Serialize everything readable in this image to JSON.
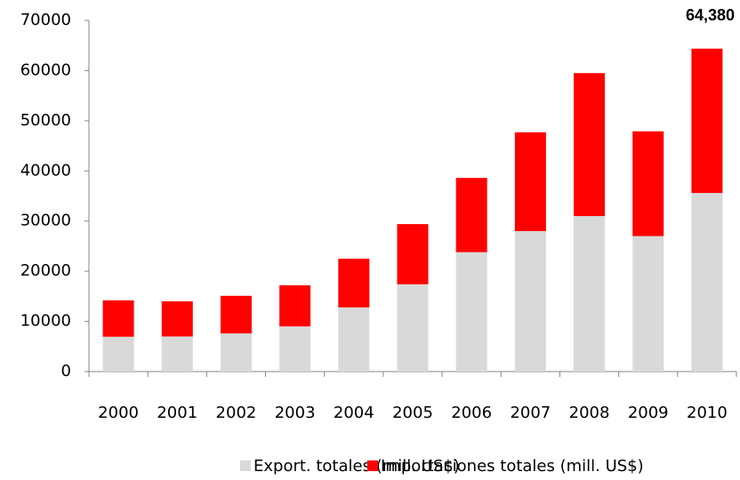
{
  "chart_data": {
    "type": "stacked_bar",
    "annotation": "64,380",
    "categories": [
      "2000",
      "2001",
      "2002",
      "2003",
      "2004",
      "2005",
      "2006",
      "2007",
      "2008",
      "2009",
      "2010"
    ],
    "series": [
      {
        "name": "Export. totales (mill. US$)",
        "color": "#d9d9d9",
        "values": [
          6950,
          7000,
          7600,
          9000,
          12800,
          17400,
          23800,
          28000,
          31000,
          27000,
          35600
        ]
      },
      {
        "name": "Importaciones totales (mill. US$)",
        "color": "#ff0000",
        "values": [
          7250,
          7000,
          7500,
          8200,
          9700,
          12000,
          14800,
          19700,
          28500,
          20900,
          28780
        ]
      }
    ],
    "ylim": [
      0,
      70000
    ],
    "yticks": [
      0,
      10000,
      20000,
      30000,
      40000,
      50000,
      60000,
      70000
    ],
    "grid": false,
    "legend": "bottom"
  }
}
